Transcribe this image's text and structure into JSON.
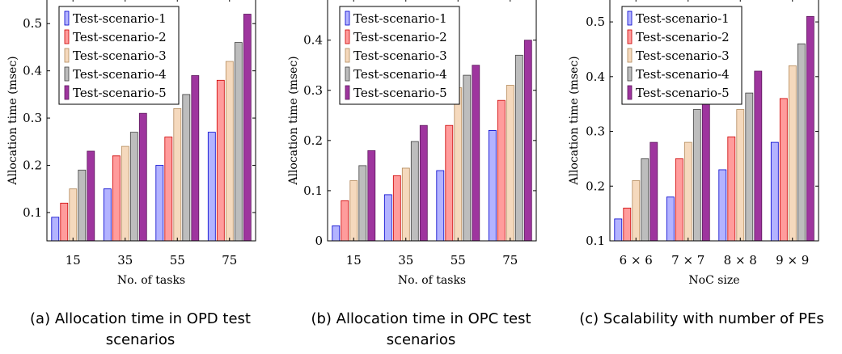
{
  "chart_data": [
    {
      "type": "bar",
      "title": "",
      "caption": "(a) Allocation time in OPD test scenarios",
      "xlabel": "No. of tasks",
      "ylabel": "Allocation time (msec)",
      "categories": [
        "15",
        "35",
        "55",
        "75"
      ],
      "ylim": [
        0.04,
        0.55
      ],
      "yticks": [
        0.1,
        0.2,
        0.3,
        0.4,
        0.5
      ],
      "legend_position": "top-left",
      "grid": false,
      "series": [
        {
          "name": "Test-scenario-1",
          "values": [
            0.09,
            0.15,
            0.2,
            0.27
          ]
        },
        {
          "name": "Test-scenario-2",
          "values": [
            0.12,
            0.22,
            0.26,
            0.38
          ]
        },
        {
          "name": "Test-scenario-3",
          "values": [
            0.15,
            0.24,
            0.32,
            0.42
          ]
        },
        {
          "name": "Test-scenario-4",
          "values": [
            0.19,
            0.27,
            0.35,
            0.46
          ]
        },
        {
          "name": "Test-scenario-5",
          "values": [
            0.23,
            0.31,
            0.39,
            0.52
          ]
        }
      ]
    },
    {
      "type": "bar",
      "title": "",
      "caption": "(b) Allocation time in OPC test scenarios",
      "xlabel": "No. of tasks",
      "ylabel": "Allocation time (msec)",
      "categories": [
        "15",
        "35",
        "55",
        "75"
      ],
      "ylim": [
        0,
        0.48
      ],
      "yticks": [
        0,
        0.1,
        0.2,
        0.3,
        0.4
      ],
      "legend_position": "top-left",
      "grid": false,
      "series": [
        {
          "name": "Test-scenario-1",
          "values": [
            0.03,
            0.092,
            0.14,
            0.22
          ]
        },
        {
          "name": "Test-scenario-2",
          "values": [
            0.08,
            0.13,
            0.23,
            0.28
          ]
        },
        {
          "name": "Test-scenario-3",
          "values": [
            0.12,
            0.145,
            0.305,
            0.31
          ]
        },
        {
          "name": "Test-scenario-4",
          "values": [
            0.15,
            0.198,
            0.33,
            0.37
          ]
        },
        {
          "name": "Test-scenario-5",
          "values": [
            0.18,
            0.23,
            0.35,
            0.4
          ]
        }
      ]
    },
    {
      "type": "bar",
      "title": "",
      "caption": "(c) Scalability with number of PEs",
      "xlabel": "NoC size",
      "ylabel": "Allocation time (msec)",
      "categories": [
        "6 × 6",
        "7 × 7",
        "8 × 8",
        "9 × 9"
      ],
      "ylim": [
        0.1,
        0.54
      ],
      "yticks": [
        0.1,
        0.2,
        0.3,
        0.4,
        0.5
      ],
      "legend_position": "top-left",
      "grid": false,
      "series": [
        {
          "name": "Test-scenario-1",
          "values": [
            0.14,
            0.18,
            0.23,
            0.28
          ]
        },
        {
          "name": "Test-scenario-2",
          "values": [
            0.16,
            0.25,
            0.29,
            0.36
          ]
        },
        {
          "name": "Test-scenario-3",
          "values": [
            0.21,
            0.28,
            0.34,
            0.42
          ]
        },
        {
          "name": "Test-scenario-4",
          "values": [
            0.25,
            0.34,
            0.37,
            0.46
          ]
        },
        {
          "name": "Test-scenario-5",
          "values": [
            0.28,
            0.36,
            0.41,
            0.51
          ]
        }
      ]
    }
  ],
  "series_colors": [
    {
      "fill": "#b3b3ff",
      "stroke": "#0000cc"
    },
    {
      "fill": "#ff9c9c",
      "stroke": "#cc0000"
    },
    {
      "fill": "#f5d9bd",
      "stroke": "#b38a5c"
    },
    {
      "fill": "#bdbdbd",
      "stroke": "#404040"
    },
    {
      "fill": "#9e359e",
      "stroke": "#5c1a5c"
    }
  ]
}
